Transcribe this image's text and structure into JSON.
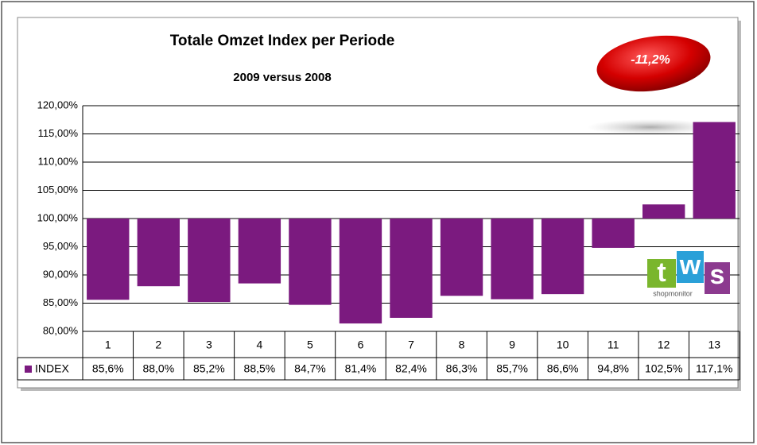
{
  "chart_data": {
    "type": "bar",
    "title": "Totale Omzet Index per  Periode",
    "subtitle": "2009 versus  2008",
    "annotation": "-11,2%",
    "categories": [
      "1",
      "2",
      "3",
      "4",
      "5",
      "6",
      "7",
      "8",
      "9",
      "10",
      "11",
      "12",
      "13"
    ],
    "series": [
      {
        "name": "INDEX",
        "color": "#7b1a7f",
        "values": [
          85.6,
          88.0,
          85.2,
          88.5,
          84.7,
          81.4,
          82.4,
          86.3,
          85.7,
          86.6,
          94.8,
          102.5,
          117.1
        ],
        "value_labels": [
          "85,6%",
          "88,0%",
          "85,2%",
          "88,5%",
          "84,7%",
          "81,4%",
          "82,4%",
          "86,3%",
          "85,7%",
          "86,6%",
          "94,8%",
          "102,5%",
          "117,1%"
        ]
      }
    ],
    "bar_base": 100,
    "ylim": [
      80,
      120
    ],
    "yticks": [
      {
        "value": 80,
        "label": "80,00%"
      },
      {
        "value": 85,
        "label": "85,00%"
      },
      {
        "value": 90,
        "label": "90,00%"
      },
      {
        "value": 95,
        "label": "95,00%"
      },
      {
        "value": 100,
        "label": "100,00%"
      },
      {
        "value": 105,
        "label": "105,00%"
      },
      {
        "value": 110,
        "label": "110,00%"
      },
      {
        "value": 115,
        "label": "115,00%"
      },
      {
        "value": 120,
        "label": "120,00%"
      }
    ],
    "grid": true
  },
  "logo": {
    "letters": [
      "t",
      "w",
      "s"
    ],
    "subtext": "shopmonitor"
  }
}
